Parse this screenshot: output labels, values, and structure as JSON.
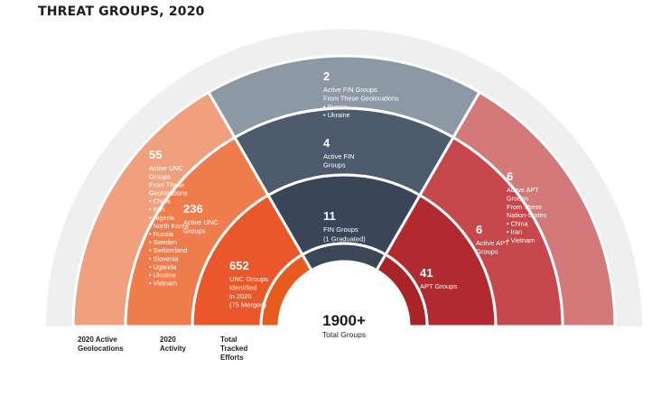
{
  "title": "THREAT GROUPS, 2020",
  "colors": {
    "ring_bg": "#efefef",
    "outer_unc": "#f0a07c",
    "outer_fin": "#8c99a5",
    "outer_apt": "#d47979",
    "r2_unc": "#ee7c4d",
    "r2_fin": "#4d5b6d",
    "r2_apt": "#c6484c",
    "r3_unc": "#e9572a",
    "r3_fin": "#3a4558",
    "r3_apt": "#b12a30",
    "r4_unc": "#e65c1f",
    "r4_fin": "#3b4659",
    "r4_apt": "#a92429"
  },
  "outer": {
    "unc": {
      "number": "55",
      "lines": [
        "Active UNC",
        "Groups",
        "From These",
        "Geolocations",
        "• China",
        "• Iran",
        "• Nigeria",
        "• North Korea",
        "• Russia",
        "• Sweden",
        "• Switzerland",
        "• Slovenia",
        "• Uganda",
        "• Ukraine",
        "• Vietnam"
      ]
    },
    "fin": {
      "number": "2",
      "lines": [
        "Active FIN Groups",
        "From These Geolocations",
        "• Russia",
        "• Ukraine"
      ]
    },
    "apt": {
      "number": "6",
      "lines": [
        "Active APT",
        "Groups",
        "From These",
        "Nation-States",
        "• China",
        "• Iran",
        "• Vietnam"
      ]
    }
  },
  "activity": {
    "unc": {
      "number": "236",
      "lines": [
        "Active UNC",
        "Groups"
      ]
    },
    "fin": {
      "number": "4",
      "lines": [
        "Active FIN",
        "Groups"
      ]
    },
    "apt": {
      "number": "6",
      "lines": [
        "Active APT",
        "Groups"
      ]
    }
  },
  "tracked": {
    "unc": {
      "number": "652",
      "lines": [
        "UNC Groups",
        "Identified",
        "in 2020",
        "(75 Merged)"
      ]
    },
    "fin": {
      "number": "11",
      "lines": [
        "FIN Groups",
        "(1 Graduated)"
      ]
    },
    "apt": {
      "number": "41",
      "lines": [
        "APT Groups"
      ]
    }
  },
  "inner_labels": {
    "unc": "UNC",
    "fin": "FIN",
    "apt": "APT"
  },
  "center": {
    "number": "1900+",
    "label": "Total Groups"
  },
  "ring_labels": {
    "geo": [
      "2020 Active",
      "Geolocations"
    ],
    "activity": [
      "2020",
      "Activity"
    ],
    "tracked": [
      "Total",
      "Tracked",
      "Efforts"
    ]
  }
}
